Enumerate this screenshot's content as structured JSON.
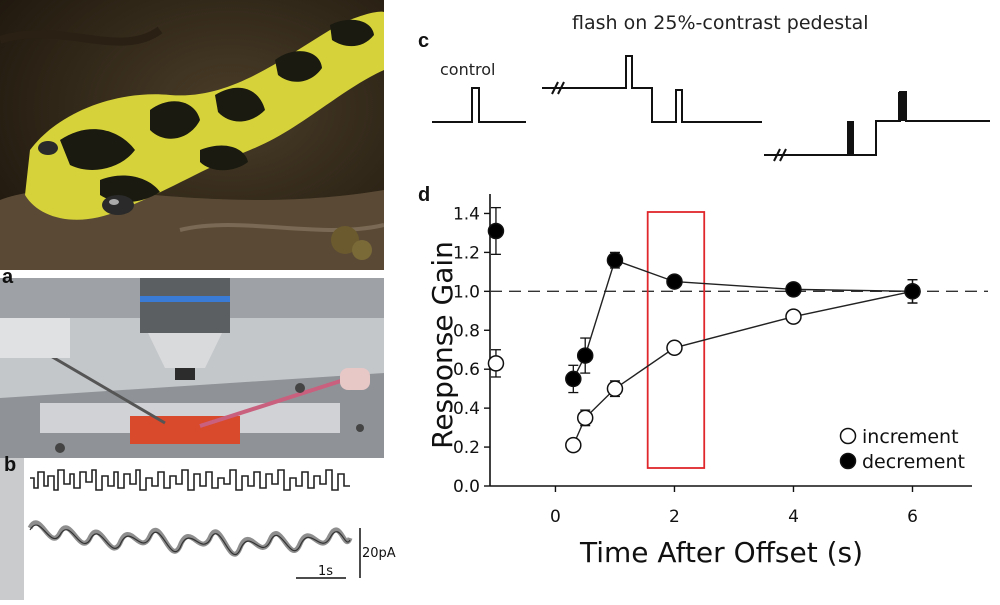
{
  "panels": {
    "a": "a",
    "b": "b",
    "c": "c",
    "d": "d"
  },
  "panel_c": {
    "title": "flash on 25%-contrast pedestal",
    "control_label": "control"
  },
  "panel_b": {
    "scale_amplitude": "20pA",
    "scale_time": "1s"
  },
  "colors": {
    "highlight_box": "#e0262b",
    "marker_fill_decrement": "#000000",
    "marker_fill_increment": "#ffffff",
    "electrode_pink": "#c9607e",
    "chamber_red": "#d9492c",
    "salamander_yellow": "#d6d33a"
  },
  "chart_data": {
    "type": "scatter",
    "xlabel": "Time After Offset (s)",
    "ylabel": "Response Gain",
    "xlim": [
      -1.1,
      7
    ],
    "ylim": [
      0,
      1.5
    ],
    "xticks": [
      0,
      2,
      4,
      6
    ],
    "yticks": [
      0.0,
      0.2,
      0.4,
      0.6,
      0.8,
      1.0,
      1.2,
      1.4
    ],
    "xtick_labels": [
      "0",
      "2",
      "4",
      "6"
    ],
    "ytick_labels": [
      "0.0",
      "0.2",
      "0.4",
      "0.6",
      "0.8",
      "1.0",
      "1.2",
      "1.4"
    ],
    "reference_line": 1.0,
    "highlight_x_range": [
      1.55,
      2.5
    ],
    "legend_position": "bottom-right",
    "series": [
      {
        "name": "increment",
        "marker": "open-circle",
        "points": [
          {
            "x": -1,
            "y": 0.63,
            "err": 0.07,
            "connected": false
          },
          {
            "x": 0.3,
            "y": 0.21,
            "err": 0.02,
            "connected": true
          },
          {
            "x": 0.5,
            "y": 0.35,
            "err": 0.04,
            "connected": true
          },
          {
            "x": 1.0,
            "y": 0.5,
            "err": 0.04,
            "connected": true
          },
          {
            "x": 2.0,
            "y": 0.71,
            "err": 0.03,
            "connected": true
          },
          {
            "x": 4.0,
            "y": 0.87,
            "err": 0.02,
            "connected": true
          },
          {
            "x": 6.0,
            "y": 1.0,
            "err": 0.06,
            "connected": true
          }
        ]
      },
      {
        "name": "decrement",
        "marker": "filled-circle",
        "points": [
          {
            "x": -1,
            "y": 1.31,
            "err": 0.12,
            "connected": false
          },
          {
            "x": 0.3,
            "y": 0.55,
            "err": 0.07,
            "connected": true
          },
          {
            "x": 0.5,
            "y": 0.67,
            "err": 0.09,
            "connected": true
          },
          {
            "x": 1.0,
            "y": 1.16,
            "err": 0.04,
            "connected": true
          },
          {
            "x": 2.0,
            "y": 1.05,
            "err": 0.03,
            "connected": true
          },
          {
            "x": 4.0,
            "y": 1.01,
            "err": 0.03,
            "connected": true
          },
          {
            "x": 6.0,
            "y": 1.0,
            "err": 0.06,
            "connected": true
          }
        ]
      }
    ]
  }
}
